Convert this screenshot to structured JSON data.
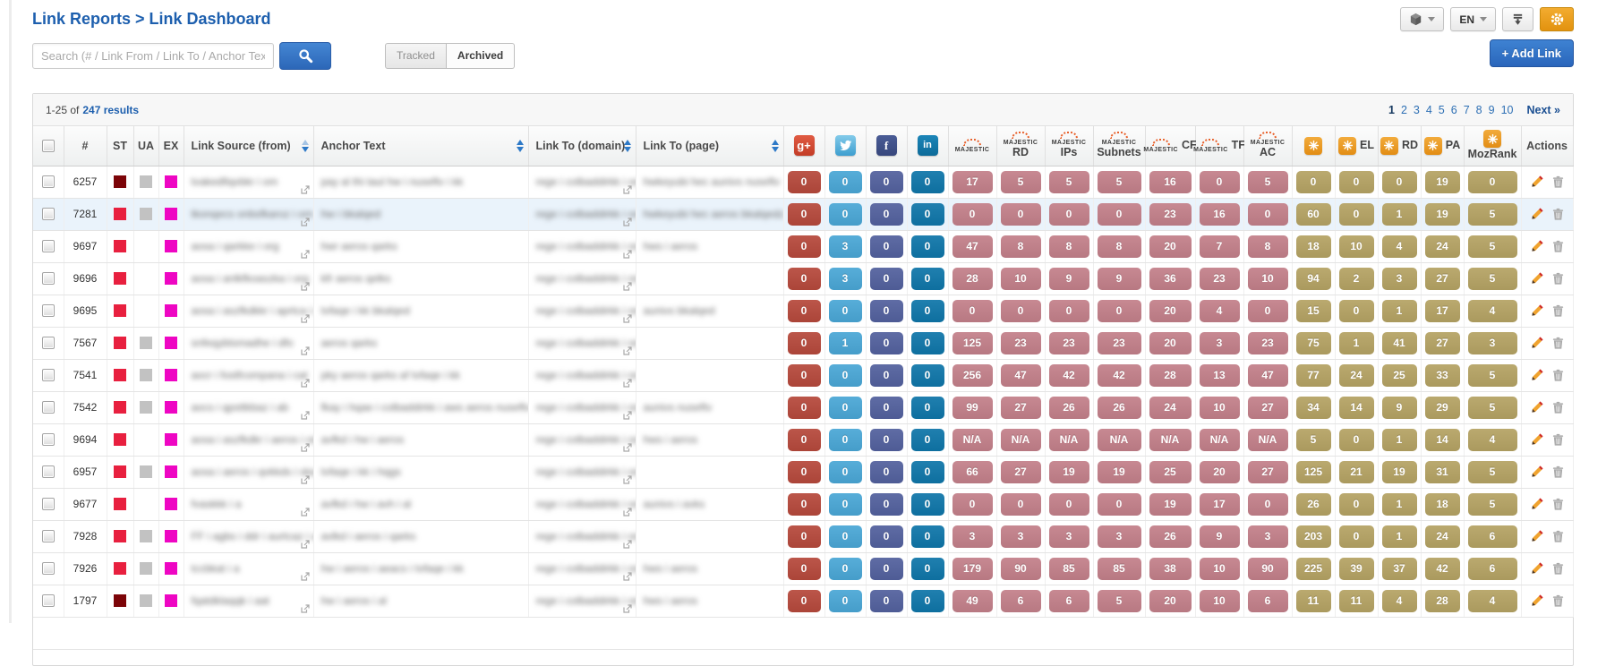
{
  "header": {
    "breadcrumb": "Link Reports > Link Dashboard",
    "language": "EN",
    "search_placeholder": "Search (# / Link From / Link To / Anchor Text)",
    "tracked_label": "Tracked",
    "archived_label": "Archived",
    "add_link_label": "+ Add Link"
  },
  "results_bar": {
    "summary_prefix": "1-25 of",
    "summary_count": "247 results",
    "pages": [
      "1",
      "2",
      "3",
      "4",
      "5",
      "6",
      "7",
      "8",
      "9",
      "10"
    ],
    "current_page": "1",
    "next_label": "Next »"
  },
  "icon_glyphs": {
    "gplus": "g+",
    "facebook": "f",
    "linkedin": "in"
  },
  "table": {
    "headers": {
      "id": "#",
      "st": "ST",
      "ua": "UA",
      "ex": "EX",
      "source": "Link Source (from)",
      "anchor": "Anchor Text",
      "domain": "Link To (domain)",
      "page": "Link To (page)",
      "majestic_brand": "MAJESTIC",
      "mj_rd": "RD",
      "mj_ips": "IPs",
      "mj_subnets": "Subnets",
      "mj_cf": "CF",
      "mj_tf": "TF",
      "mj_ac": "AC",
      "moz_el": "EL",
      "moz_rd": "RD",
      "moz_pa": "PA",
      "mozrank": "MozRank",
      "actions": "Actions"
    },
    "rows": [
      {
        "id": "6257",
        "st": "darkred",
        "ua": true,
        "ex": true,
        "highlighted": false,
        "source": "tvakedfiqvbkr i om",
        "anchor": "pay al thi taul hw i nuseftv i kk",
        "domain": "rege i colbaddirkk i org",
        "page": "hwkeyubi hec aunivs nuseftv",
        "g": "0",
        "t": "0",
        "f": "0",
        "l": "0",
        "mj": "17",
        "mjrd": "5",
        "ips": "5",
        "sub": "5",
        "cf": "16",
        "tf": "0",
        "ac": "5",
        "moz": "0",
        "el": "0",
        "mozrd": "0",
        "pa": "19",
        "mr": "0"
      },
      {
        "id": "7281",
        "st": "red",
        "ua": true,
        "ex": true,
        "highlighted": true,
        "source": "tkonqecs onbsfkaroz i om",
        "anchor": "hw i bkalqed",
        "domain": "rege i colbaddirkk i org",
        "page": "hwkeyubi hec aeros bkalqedz",
        "g": "0",
        "t": "0",
        "f": "0",
        "l": "0",
        "mj": "0",
        "mjrd": "0",
        "ips": "0",
        "sub": "0",
        "cf": "23",
        "tf": "16",
        "ac": "0",
        "moz": "60",
        "el": "0",
        "mozrd": "1",
        "pa": "19",
        "mr": "5"
      },
      {
        "id": "9697",
        "st": "red",
        "ua": false,
        "ex": true,
        "highlighted": false,
        "source": "aosa i qarkke i org",
        "anchor": "hwr aeros qarks",
        "domain": "rege i colbaddirkk i org",
        "page": "hws i aeros",
        "g": "0",
        "t": "3",
        "f": "0",
        "l": "0",
        "mj": "47",
        "mjrd": "8",
        "ips": "8",
        "sub": "8",
        "cf": "20",
        "tf": "7",
        "ac": "8",
        "moz": "18",
        "el": "10",
        "mozrd": "4",
        "pa": "24",
        "mr": "5"
      },
      {
        "id": "9696",
        "st": "red",
        "ua": false,
        "ex": true,
        "highlighted": false,
        "source": "aosa i anlkfkoaszka i org",
        "anchor": "kfr aeros qelks",
        "domain": "rege i colbaddirkk i org",
        "page": "",
        "g": "0",
        "t": "3",
        "f": "0",
        "l": "0",
        "mj": "28",
        "mjrd": "10",
        "ips": "9",
        "sub": "9",
        "cf": "36",
        "tf": "23",
        "ac": "10",
        "moz": "94",
        "el": "2",
        "mozrd": "3",
        "pa": "27",
        "mr": "5"
      },
      {
        "id": "9695",
        "st": "red",
        "ua": false,
        "ex": true,
        "highlighted": false,
        "source": "aosa i aszfkdkkr i aprtca i org",
        "anchor": "tvfaqe i kk bkalqed",
        "domain": "rege i colbaddirkk i org",
        "page": "aunivs bkalqed",
        "g": "0",
        "t": "0",
        "f": "0",
        "l": "0",
        "mj": "0",
        "mjrd": "0",
        "ips": "0",
        "sub": "0",
        "cf": "20",
        "tf": "4",
        "ac": "0",
        "moz": "15",
        "el": "0",
        "mozrd": "1",
        "pa": "17",
        "mr": "4"
      },
      {
        "id": "7567",
        "st": "red",
        "ua": true,
        "ex": true,
        "highlighted": false,
        "source": "snfeqybtsmadhe i dfo",
        "anchor": "aeros qarks",
        "domain": "rege i colbaddirkk i org",
        "page": "",
        "g": "0",
        "t": "1",
        "f": "0",
        "l": "0",
        "mj": "125",
        "mjrd": "23",
        "ips": "23",
        "sub": "23",
        "cf": "20",
        "tf": "3",
        "ac": "23",
        "moz": "75",
        "el": "1",
        "mozrd": "41",
        "pa": "27",
        "mr": "3"
      },
      {
        "id": "7541",
        "st": "red",
        "ua": true,
        "ex": true,
        "highlighted": false,
        "source": "aocr i fostfcompana i cat",
        "anchor": "pky aeros qarks af tvfaqe i kk",
        "domain": "rege i colbaddirkk i org",
        "page": "",
        "g": "0",
        "t": "0",
        "f": "0",
        "l": "0",
        "mj": "256",
        "mjrd": "47",
        "ips": "42",
        "sub": "42",
        "cf": "28",
        "tf": "13",
        "ac": "47",
        "moz": "77",
        "el": "24",
        "mozrd": "25",
        "pa": "33",
        "mr": "5"
      },
      {
        "id": "7542",
        "st": "red",
        "ua": true,
        "ex": true,
        "highlighted": false,
        "source": "aocs i qpsttkbaz i ab",
        "anchor": "fkay i hqae i colbaddirkk i aws aeros nuseftv",
        "domain": "rege i colbaddirkk i org",
        "page": "aunivs nuseftv",
        "g": "0",
        "t": "0",
        "f": "0",
        "l": "0",
        "mj": "99",
        "mjrd": "27",
        "ips": "26",
        "sub": "26",
        "cf": "24",
        "tf": "10",
        "ac": "27",
        "moz": "34",
        "el": "14",
        "mozrd": "9",
        "pa": "29",
        "mr": "5"
      },
      {
        "id": "9694",
        "st": "red",
        "ua": false,
        "ex": true,
        "highlighted": false,
        "source": "aosa i aszfkdkr i aeros i org",
        "anchor": "avfkd i hw i aeros",
        "domain": "rege i colbaddirkk i org",
        "page": "hws i aeros",
        "g": "0",
        "t": "0",
        "f": "0",
        "l": "0",
        "mj": "N/A",
        "mjrd": "N/A",
        "ips": "N/A",
        "sub": "N/A",
        "cf": "N/A",
        "tf": "N/A",
        "ac": "N/A",
        "moz": "5",
        "el": "0",
        "mozrd": "1",
        "pa": "14",
        "mr": "4"
      },
      {
        "id": "6957",
        "st": "red",
        "ua": true,
        "ex": true,
        "highlighted": false,
        "source": "aosa i aeros i qvkkds i ska i org",
        "anchor": "tvfaqe i kk i hqgs",
        "domain": "rege i colbaddirkk i org",
        "page": "",
        "g": "0",
        "t": "0",
        "f": "0",
        "l": "0",
        "mj": "66",
        "mjrd": "27",
        "ips": "19",
        "sub": "19",
        "cf": "25",
        "tf": "20",
        "ac": "27",
        "moz": "125",
        "el": "21",
        "mozrd": "19",
        "pa": "31",
        "mr": "5"
      },
      {
        "id": "9677",
        "st": "red",
        "ua": false,
        "ex": true,
        "highlighted": false,
        "source": "fvaskkk i a",
        "anchor": "avfkd i hw i avh i al",
        "domain": "rege i colbaddirkk i org",
        "page": "aunivs i avks",
        "g": "0",
        "t": "0",
        "f": "0",
        "l": "0",
        "mj": "0",
        "mjrd": "0",
        "ips": "0",
        "sub": "0",
        "cf": "19",
        "tf": "17",
        "ac": "0",
        "moz": "26",
        "el": "0",
        "mozrd": "1",
        "pa": "18",
        "mr": "5"
      },
      {
        "id": "7928",
        "st": "red",
        "ua": true,
        "ex": true,
        "highlighted": false,
        "source": "FF i agbs i ddr i aurtcaz i am",
        "anchor": "avlkd i aeros i qarks",
        "domain": "rege i colbaddirkk i org",
        "page": "",
        "g": "0",
        "t": "0",
        "f": "0",
        "l": "0",
        "mj": "3",
        "mjrd": "3",
        "ips": "3",
        "sub": "3",
        "cf": "26",
        "tf": "9",
        "ac": "3",
        "moz": "203",
        "el": "0",
        "mozrd": "1",
        "pa": "24",
        "mr": "6"
      },
      {
        "id": "7926",
        "st": "red",
        "ua": true,
        "ex": true,
        "highlighted": false,
        "source": "tccbkat i a",
        "anchor": "hw i aeros i aeacs i tvfaqe i kk",
        "domain": "rege i colbaddirkk i org",
        "page": "hws i aeros",
        "g": "0",
        "t": "0",
        "f": "0",
        "l": "0",
        "mj": "179",
        "mjrd": "90",
        "ips": "85",
        "sub": "85",
        "cf": "38",
        "tf": "10",
        "ac": "90",
        "moz": "225",
        "el": "39",
        "mozrd": "37",
        "pa": "42",
        "mr": "6"
      },
      {
        "id": "1797",
        "st": "darkred",
        "ua": true,
        "ex": true,
        "highlighted": false,
        "source": "fqatdklaqqk i aat",
        "anchor": "hw i aeros i al",
        "domain": "rege i colbaddirkk i org",
        "page": "hws i aeros",
        "g": "0",
        "t": "0",
        "f": "0",
        "l": "0",
        "mj": "49",
        "mjrd": "6",
        "ips": "6",
        "sub": "5",
        "cf": "20",
        "tf": "10",
        "ac": "6",
        "moz": "11",
        "el": "11",
        "mozrd": "4",
        "pa": "28",
        "mr": "4"
      }
    ]
  },
  "colors": {
    "accent_blue": "#2e6fbe",
    "breadcrumb_blue": "#1d5fae",
    "gear_orange": "#eda21c",
    "badge_gplus": "#b6493c",
    "badge_twitter": "#4aa7d6",
    "badge_facebook": "#53619e",
    "badge_linkedin": "#0f76a9",
    "badge_majestic": "#c3808a",
    "badge_moz": "#b5a364",
    "majestic_arc_orange": "#e8612c",
    "moz_icon_top": "#f2ab3c",
    "moz_icon_bottom": "#e28d14",
    "status_red": "#e8203f",
    "status_darkred": "#7c0408",
    "status_gray": "#c2c2c2",
    "status_magenta": "#ee06c3"
  }
}
